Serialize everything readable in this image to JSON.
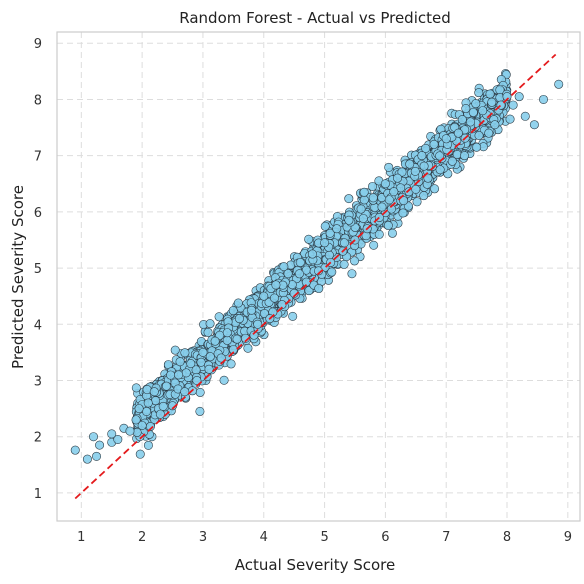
{
  "chart_data": {
    "type": "scatter",
    "title": "Random Forest - Actual vs Predicted",
    "xlabel": "Actual Severity Score",
    "ylabel": "Predicted Severity Score",
    "xlim": [
      0.6,
      9.2
    ],
    "ylim": [
      0.5,
      9.2
    ],
    "xticks": [
      1,
      2,
      3,
      4,
      5,
      6,
      7,
      8,
      9
    ],
    "yticks": [
      1,
      2,
      3,
      4,
      5,
      6,
      7,
      8,
      9
    ],
    "grid": true,
    "reference_line": {
      "x": [
        0.9,
        8.8
      ],
      "y": [
        0.9,
        8.8
      ],
      "style": "dashed",
      "color": "#e41a1c"
    },
    "series": [
      {
        "marker_fill": "#87ceeb",
        "marker_edge": "#2b3a44",
        "points": [
          [
            0.9,
            1.76
          ],
          [
            1.1,
            1.6
          ],
          [
            1.2,
            2.0
          ],
          [
            1.25,
            1.65
          ],
          [
            1.3,
            1.85
          ],
          [
            1.5,
            1.9
          ],
          [
            1.5,
            2.05
          ],
          [
            1.6,
            1.95
          ],
          [
            1.7,
            2.15
          ],
          [
            1.8,
            2.1
          ],
          [
            1.9,
            2.3
          ],
          [
            1.95,
            2.5
          ],
          [
            2.0,
            2.2
          ],
          [
            2.1,
            2.6
          ],
          [
            2.2,
            2.8
          ],
          [
            2.3,
            2.4
          ],
          [
            2.4,
            2.9
          ],
          [
            2.5,
            2.55
          ],
          [
            2.6,
            3.1
          ],
          [
            2.7,
            2.8
          ],
          [
            2.8,
            3.3
          ],
          [
            2.9,
            3.0
          ],
          [
            2.95,
            2.45
          ],
          [
            3.0,
            3.5
          ],
          [
            3.1,
            3.2
          ],
          [
            3.2,
            3.7
          ],
          [
            3.3,
            3.4
          ],
          [
            3.4,
            3.85
          ],
          [
            3.5,
            3.55
          ],
          [
            3.6,
            4.1
          ],
          [
            3.7,
            3.75
          ],
          [
            3.8,
            4.25
          ],
          [
            3.9,
            4.0
          ],
          [
            4.0,
            4.5
          ],
          [
            4.1,
            4.1
          ],
          [
            4.2,
            4.7
          ],
          [
            4.3,
            4.35
          ],
          [
            4.4,
            4.9
          ],
          [
            4.5,
            4.55
          ],
          [
            4.6,
            5.1
          ],
          [
            4.7,
            4.75
          ],
          [
            4.8,
            5.25
          ],
          [
            4.9,
            4.95
          ],
          [
            5.0,
            5.45
          ],
          [
            5.1,
            5.1
          ],
          [
            5.2,
            5.7
          ],
          [
            5.3,
            5.3
          ],
          [
            5.4,
            5.85
          ],
          [
            5.45,
            4.9
          ],
          [
            5.5,
            5.5
          ],
          [
            5.6,
            6.05
          ],
          [
            5.7,
            5.7
          ],
          [
            5.8,
            6.25
          ],
          [
            5.9,
            5.9
          ],
          [
            6.0,
            6.5
          ],
          [
            6.1,
            6.05
          ],
          [
            6.2,
            6.6
          ],
          [
            6.3,
            6.2
          ],
          [
            6.4,
            6.85
          ],
          [
            6.5,
            6.4
          ],
          [
            6.6,
            7.0
          ],
          [
            6.7,
            6.6
          ],
          [
            6.8,
            7.2
          ],
          [
            6.9,
            6.75
          ],
          [
            7.0,
            7.3
          ],
          [
            7.1,
            6.9
          ],
          [
            7.2,
            7.4
          ],
          [
            7.3,
            7.0
          ],
          [
            7.4,
            7.6
          ],
          [
            7.5,
            7.15
          ],
          [
            7.6,
            7.8
          ],
          [
            7.7,
            7.4
          ],
          [
            7.75,
            7.95
          ],
          [
            7.8,
            7.55
          ],
          [
            7.9,
            7.9
          ],
          [
            8.0,
            8.05
          ],
          [
            8.05,
            7.65
          ],
          [
            8.1,
            7.9
          ],
          [
            8.2,
            8.05
          ],
          [
            8.3,
            7.7
          ],
          [
            8.45,
            7.55
          ],
          [
            8.6,
            8.0
          ],
          [
            8.85,
            8.27
          ]
        ]
      }
    ]
  }
}
